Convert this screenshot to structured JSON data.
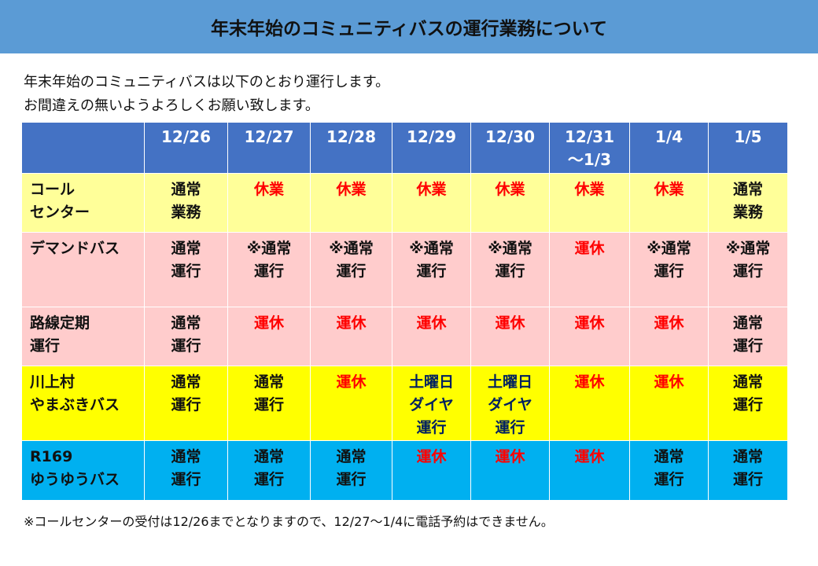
{
  "title": "年末年始のコミュニティバスの運行業務について",
  "intro": [
    "年末年始のコミュニティバスは以下のとおり運行します。",
    "お間違えの無いようよろしくお願い致します。"
  ],
  "table": {
    "headers": [
      "",
      "12/26",
      "12/27",
      "12/28",
      "12/29",
      "12/30",
      "12/31\n～1/3",
      "1/4",
      "1/5"
    ],
    "rows": [
      {
        "label": "コール\nセンター",
        "bg": "#FFFF99",
        "cells": [
          [
            "通常\n業務",
            ""
          ],
          [
            "休業",
            "red"
          ],
          [
            "休業",
            "red"
          ],
          [
            "休業",
            "red"
          ],
          [
            "休業",
            "red"
          ],
          [
            "休業",
            "red"
          ],
          [
            "休業",
            "red"
          ],
          [
            "通常\n業務",
            ""
          ]
        ]
      },
      {
        "label": "デマンドバス",
        "bg": "#FFCCCC",
        "cells": [
          [
            "通常\n運行",
            ""
          ],
          [
            "※通常\n運行",
            ""
          ],
          [
            "※通常\n運行",
            ""
          ],
          [
            "※通常\n運行",
            ""
          ],
          [
            "※通常\n運行",
            ""
          ],
          [
            "運休",
            "red"
          ],
          [
            "※通常\n運行",
            ""
          ],
          [
            "※通常\n運行",
            ""
          ]
        ]
      },
      {
        "label": "路線定期\n運行",
        "bg": "#FFCCCC",
        "cells": [
          [
            "通常\n運行",
            ""
          ],
          [
            "運休",
            "red"
          ],
          [
            "運休",
            "red"
          ],
          [
            "運休",
            "red"
          ],
          [
            "運休",
            "red"
          ],
          [
            "運休",
            "red"
          ],
          [
            "運休",
            "red"
          ],
          [
            "通常\n運行",
            ""
          ]
        ]
      },
      {
        "label": "川上村\nやまぶきバス",
        "bg": "#FFFF00",
        "cells": [
          [
            "通常\n運行",
            ""
          ],
          [
            "通常\n運行",
            ""
          ],
          [
            "運休",
            "red"
          ],
          [
            "土曜日\nダイヤ\n運行",
            "navy"
          ],
          [
            "土曜日\nダイヤ\n運行",
            "navy"
          ],
          [
            "運休",
            "red"
          ],
          [
            "運休",
            "red"
          ],
          [
            "通常\n運行",
            ""
          ]
        ]
      },
      {
        "label": "R169\nゆうゆうバス",
        "bg": "#00B0F0",
        "cells": [
          [
            "通常\n運行",
            ""
          ],
          [
            "通常\n運行",
            ""
          ],
          [
            "通常\n運行",
            ""
          ],
          [
            "運休",
            "red"
          ],
          [
            "運休",
            "red"
          ],
          [
            "運休",
            "red"
          ],
          [
            "通常\n運行",
            ""
          ],
          [
            "通常\n運行",
            ""
          ]
        ]
      }
    ]
  },
  "footnote": "※コールセンターの受付は12/26までとなりますので、12/27～1/4に電話予約はできません。",
  "colors": {
    "header_bar": "#5B9BD5",
    "table_header": "#4472C4",
    "closed": "#FF0000",
    "saturday": "#002060"
  }
}
